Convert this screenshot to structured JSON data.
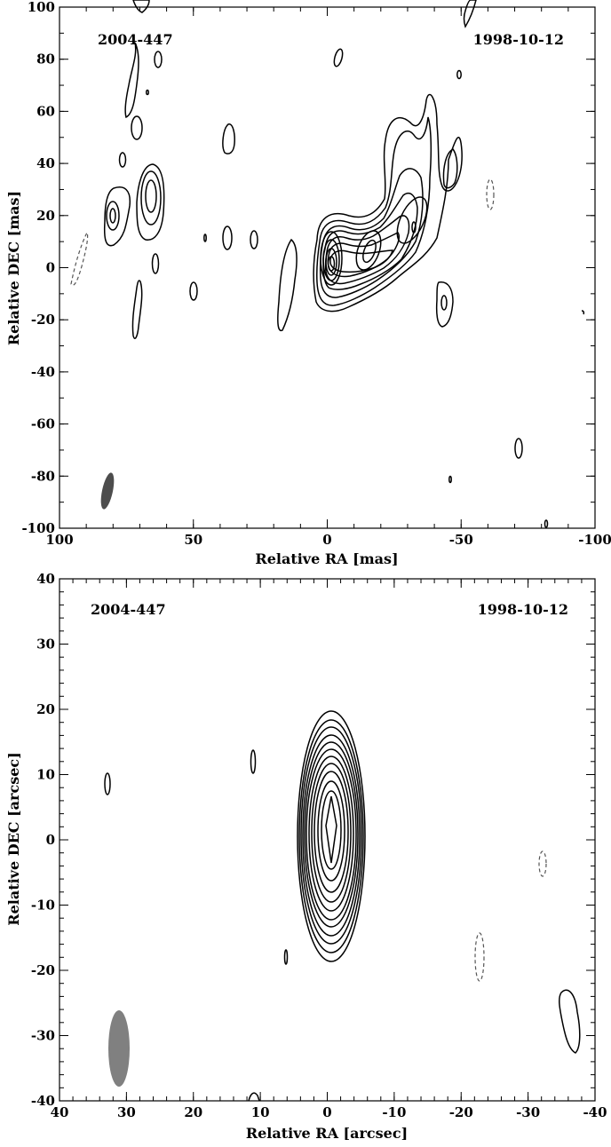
{
  "panels": [
    {
      "source": "2004-447",
      "date": "1998-10-12",
      "xlabel": "Relative RA [mas]",
      "ylabel": "Relative DEC [mas]",
      "xlim": [
        100,
        -100
      ],
      "ylim": [
        -100,
        100
      ],
      "xticks": [
        "100",
        "50",
        "0",
        "-50",
        "-100"
      ],
      "yticks": [
        "-100",
        "-80",
        "-60",
        "-40",
        "-20",
        "0",
        "20",
        "40",
        "60",
        "80",
        "100"
      ],
      "beam_color": "#4d4d4d"
    },
    {
      "source": "2004-447",
      "date": "1998-10-12",
      "xlabel": "Relative RA [arcsec]",
      "ylabel": "Relative DEC [arcsec]",
      "xlim": [
        40,
        -40
      ],
      "ylim": [
        -40,
        40
      ],
      "xticks": [
        "40",
        "30",
        "20",
        "10",
        "0",
        "-10",
        "-20",
        "-30",
        "-40"
      ],
      "yticks": [
        "-40",
        "-30",
        "-20",
        "-10",
        "0",
        "10",
        "20",
        "30",
        "40"
      ],
      "beam_color": "#808080"
    }
  ]
}
